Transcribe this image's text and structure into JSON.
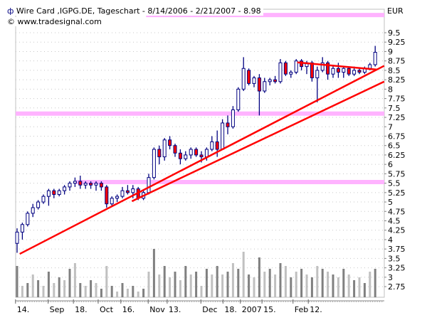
{
  "header": {
    "icon": "instrument-icon",
    "title": "Wire Card ,IGPG.DE, Tageschart - 8/14/2006 - 2/21/2007 - 8.98",
    "copyright": "© www.tradesignal.com",
    "currency": "EUR"
  },
  "chart_data": {
    "type": "candlestick",
    "title": "Wire Card ,IGPG.DE, Tageschart - 8/14/2006 - 2/21/2007 - 8.98",
    "ylabel": "EUR",
    "ylim": [
      2.5,
      10.2
    ],
    "grid": true,
    "yticks": [
      "9.5",
      "9.25",
      "9",
      "8.75",
      "8.5",
      "8.25",
      "8",
      "7.75",
      "7.5",
      "7.25",
      "7",
      "6.75",
      "6.5",
      "6.25",
      "6",
      "5.75",
      "5.5",
      "5.25",
      "5",
      "4.75",
      "4.5",
      "4.25",
      "4",
      "3.75",
      "3.5",
      "3.25",
      "3",
      "2.75"
    ],
    "xticks": [
      {
        "label": "14.",
        "i": -0.3
      },
      {
        "label": "Sep",
        "i": 5.9
      },
      {
        "label": "18.",
        "i": 10.7
      },
      {
        "label": "Oct",
        "i": 15.4
      },
      {
        "label": "16.",
        "i": 19.7
      },
      {
        "label": "Nov",
        "i": 24.9
      },
      {
        "label": "13.",
        "i": 28.5
      },
      {
        "label": "Dec",
        "i": 34.9
      },
      {
        "label": "18.",
        "i": 39.1
      },
      {
        "label": "2007",
        "i": 42.4
      },
      {
        "label": "15.",
        "i": 46.5
      },
      {
        "label": "Feb",
        "i": 52.4
      },
      {
        "label": "12.",
        "i": 55.3
      }
    ],
    "ohlc": [
      [
        3.9,
        4.3,
        3.65,
        4.2
      ],
      [
        4.2,
        4.45,
        4.0,
        4.4
      ],
      [
        4.4,
        4.75,
        4.35,
        4.7
      ],
      [
        4.7,
        4.95,
        4.6,
        4.85
      ],
      [
        4.85,
        5.05,
        4.8,
        5.0
      ],
      [
        5.0,
        5.2,
        4.95,
        5.15
      ],
      [
        5.15,
        5.35,
        4.9,
        5.3
      ],
      [
        5.3,
        5.35,
        5.1,
        5.2
      ],
      [
        5.2,
        5.35,
        5.15,
        5.3
      ],
      [
        5.3,
        5.45,
        5.2,
        5.4
      ],
      [
        5.4,
        5.55,
        5.3,
        5.5
      ],
      [
        5.5,
        5.65,
        5.4,
        5.55
      ],
      [
        5.55,
        5.7,
        5.35,
        5.45
      ],
      [
        5.45,
        5.55,
        5.35,
        5.5
      ],
      [
        5.5,
        5.55,
        5.35,
        5.45
      ],
      [
        5.45,
        5.55,
        5.3,
        5.5
      ],
      [
        5.5,
        5.55,
        5.3,
        5.4
      ],
      [
        5.4,
        5.45,
        4.85,
        4.95
      ],
      [
        4.95,
        5.15,
        4.9,
        5.1
      ],
      [
        5.1,
        5.2,
        5.0,
        5.15
      ],
      [
        5.15,
        5.4,
        5.1,
        5.3
      ],
      [
        5.3,
        5.45,
        5.2,
        5.25
      ],
      [
        5.25,
        5.45,
        5.1,
        5.35
      ],
      [
        5.35,
        5.4,
        5.05,
        5.1
      ],
      [
        5.1,
        5.3,
        5.05,
        5.25
      ],
      [
        5.25,
        5.75,
        5.2,
        5.65
      ],
      [
        5.65,
        6.45,
        5.6,
        6.4
      ],
      [
        6.4,
        6.5,
        6.0,
        6.2
      ],
      [
        6.2,
        6.7,
        6.1,
        6.65
      ],
      [
        6.65,
        6.75,
        6.4,
        6.5
      ],
      [
        6.5,
        6.55,
        6.2,
        6.3
      ],
      [
        6.3,
        6.4,
        6.0,
        6.15
      ],
      [
        6.15,
        6.35,
        6.1,
        6.25
      ],
      [
        6.25,
        6.45,
        6.15,
        6.4
      ],
      [
        6.4,
        6.45,
        6.2,
        6.25
      ],
      [
        6.25,
        6.35,
        6.05,
        6.2
      ],
      [
        6.2,
        6.45,
        6.1,
        6.4
      ],
      [
        6.4,
        6.75,
        6.35,
        6.6
      ],
      [
        6.6,
        6.9,
        6.2,
        6.4
      ],
      [
        6.4,
        7.2,
        6.4,
        7.1
      ],
      [
        7.1,
        7.3,
        6.8,
        7.0
      ],
      [
        7.0,
        7.55,
        6.95,
        7.45
      ],
      [
        7.45,
        8.05,
        7.4,
        8.0
      ],
      [
        8.0,
        8.85,
        7.95,
        8.55
      ],
      [
        8.5,
        8.55,
        8.1,
        8.15
      ],
      [
        8.15,
        8.35,
        8.05,
        8.3
      ],
      [
        8.3,
        8.4,
        7.3,
        7.95
      ],
      [
        7.95,
        8.3,
        7.9,
        8.2
      ],
      [
        8.2,
        8.3,
        8.1,
        8.25
      ],
      [
        8.25,
        8.35,
        8.15,
        8.2
      ],
      [
        8.2,
        8.8,
        8.15,
        8.7
      ],
      [
        8.7,
        8.75,
        8.35,
        8.4
      ],
      [
        8.4,
        8.5,
        8.3,
        8.45
      ],
      [
        8.45,
        8.8,
        8.4,
        8.75
      ],
      [
        8.75,
        8.8,
        8.5,
        8.6
      ],
      [
        8.6,
        8.75,
        8.4,
        8.7
      ],
      [
        8.7,
        8.75,
        8.2,
        8.3
      ],
      [
        8.3,
        8.6,
        7.65,
        8.5
      ],
      [
        8.5,
        8.85,
        8.45,
        8.7
      ],
      [
        8.7,
        8.75,
        8.25,
        8.4
      ],
      [
        8.4,
        8.65,
        8.3,
        8.55
      ],
      [
        8.55,
        8.7,
        8.3,
        8.45
      ],
      [
        8.45,
        8.6,
        8.3,
        8.55
      ],
      [
        8.55,
        8.6,
        8.35,
        8.4
      ],
      [
        8.4,
        8.6,
        8.35,
        8.5
      ],
      [
        8.5,
        8.55,
        8.4,
        8.45
      ],
      [
        8.45,
        8.6,
        8.4,
        8.55
      ],
      [
        8.55,
        8.7,
        8.5,
        8.65
      ],
      [
        8.65,
        9.15,
        8.6,
        8.98
      ]
    ],
    "volume": [
      55,
      20,
      25,
      40,
      30,
      20,
      45,
      25,
      35,
      30,
      50,
      60,
      25,
      20,
      30,
      25,
      15,
      55,
      20,
      10,
      25,
      15,
      20,
      10,
      15,
      45,
      85,
      40,
      55,
      35,
      45,
      30,
      55,
      40,
      45,
      20,
      50,
      40,
      55,
      40,
      45,
      60,
      50,
      80,
      40,
      35,
      70,
      45,
      50,
      40,
      60,
      55,
      35,
      45,
      50,
      40,
      35,
      55,
      50,
      45,
      40,
      35,
      50,
      40,
      30,
      35,
      25,
      45,
      50
    ],
    "trendlines": [
      {
        "from": [
          0.5,
          3.62
        ],
        "to": [
          69.7,
          8.62
        ]
      },
      {
        "from": [
          21.8,
          5.02
        ],
        "to": [
          69.7,
          8.2
        ]
      },
      {
        "from": [
          53.2,
          8.71
        ],
        "to": [
          68.4,
          8.52
        ]
      }
    ],
    "horizontal_levels": [
      {
        "price": 9.97,
        "from_i": 24.5
      },
      {
        "price": 7.35,
        "from_i": -0.5
      },
      {
        "price": 5.53,
        "from_i": 11.2
      }
    ],
    "colors": {
      "up_body": "#ffffff",
      "down_body": "#ff0000",
      "outline": "#000080",
      "trendline": "#ff0000",
      "level": "#ffb3ff",
      "volume_dark": "#808080",
      "volume_light": "#c0c0c0"
    }
  }
}
